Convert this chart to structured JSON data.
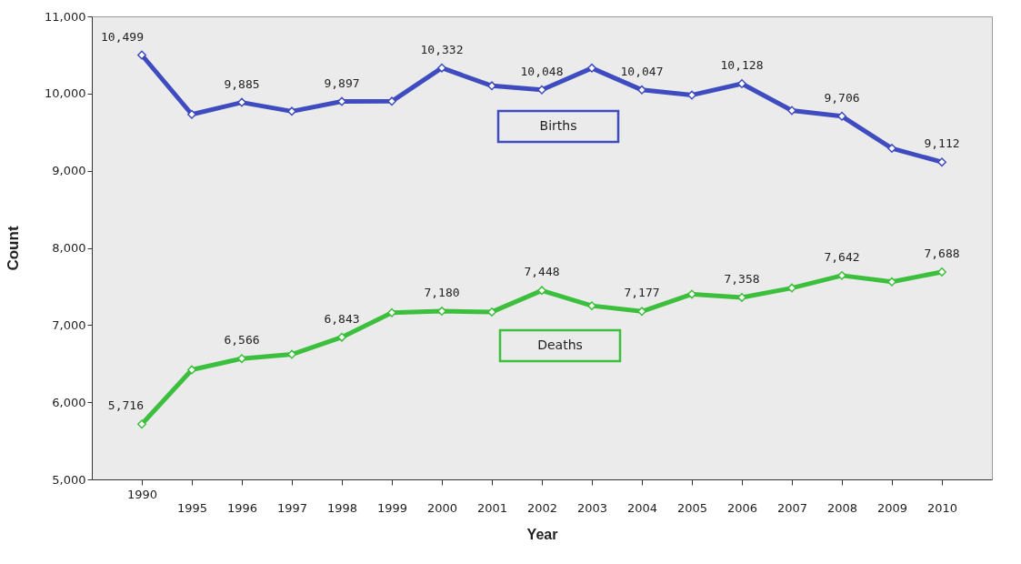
{
  "chart_data": {
    "type": "line",
    "xlabel": "Year",
    "ylabel": "Count",
    "categories": [
      "1990",
      "1995",
      "1996",
      "1997",
      "1998",
      "1999",
      "2000",
      "2001",
      "2002",
      "2003",
      "2004",
      "2005",
      "2006",
      "2007",
      "2008",
      "2009",
      "2010"
    ],
    "ylim": [
      5000,
      11000
    ],
    "yticks": [
      {
        "value": 5000,
        "label": "5,000"
      },
      {
        "value": 6000,
        "label": "6,000"
      },
      {
        "value": 7000,
        "label": "7,000"
      },
      {
        "value": 8000,
        "label": "8,000"
      },
      {
        "value": 9000,
        "label": "9,000"
      },
      {
        "value": 10000,
        "label": "10,000"
      },
      {
        "value": 11000,
        "label": "11,000"
      }
    ],
    "grid": false,
    "marker": "diamond",
    "line_style": "solid",
    "series": [
      {
        "name": "Births",
        "color": "#3e4cbf",
        "values": [
          10499,
          9730,
          9885,
          9770,
          9897,
          9900,
          10332,
          10100,
          10048,
          10330,
          10047,
          9980,
          10128,
          9780,
          9706,
          9290,
          9112
        ],
        "value_labels": [
          "10,499",
          null,
          "9,885",
          null,
          "9,897",
          null,
          "10,332",
          null,
          "10,048",
          null,
          "10,047",
          null,
          "10,128",
          null,
          "9,706",
          null,
          "9,112"
        ]
      },
      {
        "name": "Deaths",
        "color": "#3cbf3c",
        "values": [
          5716,
          6420,
          6566,
          6620,
          6843,
          7160,
          7180,
          7170,
          7448,
          7250,
          7177,
          7400,
          7358,
          7480,
          7642,
          7560,
          7688
        ],
        "value_labels": [
          "5,716",
          null,
          "6,566",
          null,
          "6,843",
          null,
          "7,180",
          null,
          "7,448",
          null,
          "7,177",
          null,
          "7,358",
          null,
          "7,642",
          null,
          "7,688"
        ]
      }
    ]
  }
}
